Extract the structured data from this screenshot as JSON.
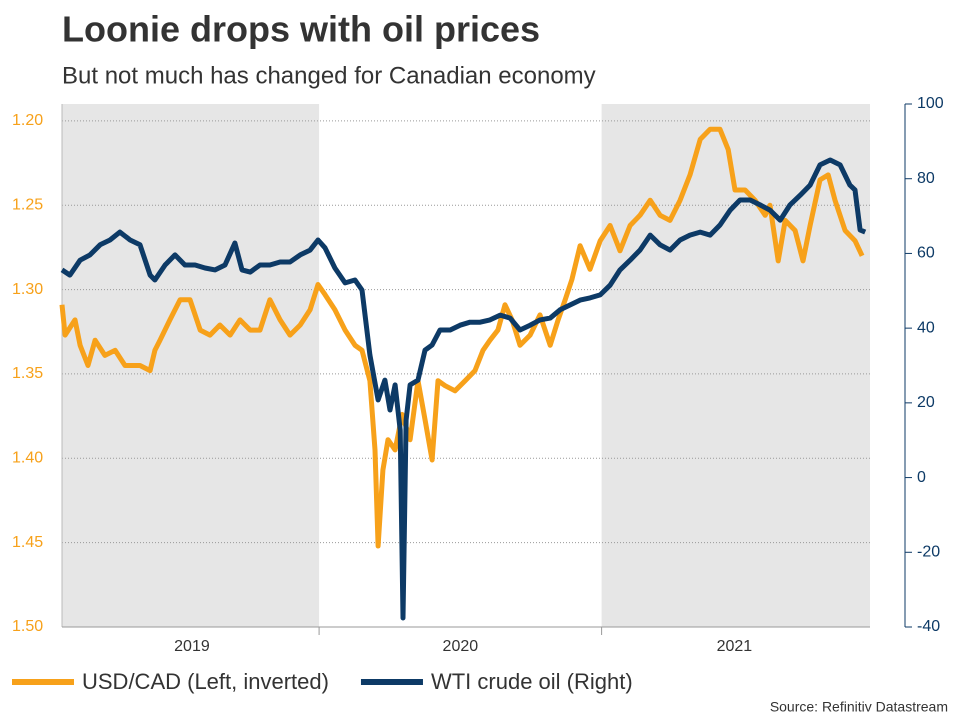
{
  "chart_data": {
    "type": "line",
    "title": "Loonie drops with oil prices",
    "subtitle": "But not much has changed for Canadian economy",
    "source": "Source: Refinitiv Datastream",
    "xlim": [
      2019.09,
      2021.95
    ],
    "xticks": [
      {
        "value": 2019.55,
        "label": "2019"
      },
      {
        "value": 2020.5,
        "label": "2020"
      },
      {
        "value": 2021.47,
        "label": "2021"
      }
    ],
    "ylim": [
      1.19,
      1.5
    ],
    "y_inverted": true,
    "yticks": [
      {
        "value": 1.2,
        "label": "1.20"
      },
      1.25,
      {
        "value": 1.3,
        "label": "1.30"
      },
      1.35,
      {
        "value": 1.4,
        "label": "1.40"
      },
      1.45,
      {
        "value": 1.5,
        "label": "1.50"
      }
    ],
    "y2lim": [
      -40,
      100
    ],
    "y2ticks": [
      100,
      80,
      60,
      40,
      20,
      0,
      -20,
      -40
    ],
    "grid": true,
    "legend": "bottom",
    "series": [
      {
        "name": "USD/CAD (Left, inverted)",
        "color": "#f7a11a",
        "axis": "y",
        "x": [
          2019.09,
          2019.101,
          2019.136,
          2019.154,
          2019.182,
          2019.207,
          2019.242,
          2019.278,
          2019.313,
          2019.366,
          2019.402,
          2019.419,
          2019.437,
          2019.472,
          2019.508,
          2019.543,
          2019.579,
          2019.614,
          2019.649,
          2019.685,
          2019.72,
          2019.756,
          2019.791,
          2019.826,
          2019.862,
          2019.897,
          2019.933,
          2019.968,
          2019.996,
          2020.021,
          2020.056,
          2020.092,
          2020.127,
          2020.152,
          2020.18,
          2020.198,
          2020.209,
          2020.226,
          2020.244,
          2020.269,
          2020.294,
          2020.322,
          2020.35,
          2020.375,
          2020.4,
          2020.421,
          2020.446,
          2020.481,
          2020.517,
          2020.552,
          2020.58,
          2020.605,
          2020.633,
          2020.658,
          2020.683,
          2020.711,
          2020.747,
          2020.782,
          2020.818,
          2020.846,
          2020.871,
          2020.895,
          2020.924,
          2020.959,
          2020.995,
          2021.03,
          2021.065,
          2021.101,
          2021.136,
          2021.172,
          2021.207,
          2021.242,
          2021.278,
          2021.313,
          2021.349,
          2021.384,
          2021.419,
          2021.448,
          2021.472,
          2021.508,
          2021.543,
          2021.579,
          2021.596,
          2021.625,
          2021.65,
          2021.685,
          2021.713,
          2021.738,
          2021.773,
          2021.802,
          2021.826,
          2021.862,
          2021.897,
          2021.922
        ],
        "values": [
          1.309,
          1.327,
          1.318,
          1.333,
          1.345,
          1.33,
          1.339,
          1.336,
          1.345,
          1.345,
          1.348,
          1.336,
          1.33,
          1.318,
          1.306,
          1.306,
          1.324,
          1.327,
          1.321,
          1.327,
          1.318,
          1.324,
          1.324,
          1.306,
          1.318,
          1.327,
          1.321,
          1.312,
          1.297,
          1.303,
          1.312,
          1.324,
          1.333,
          1.336,
          1.354,
          1.395,
          1.452,
          1.407,
          1.389,
          1.395,
          1.374,
          1.389,
          1.354,
          1.377,
          1.401,
          1.354,
          1.357,
          1.36,
          1.354,
          1.348,
          1.336,
          1.33,
          1.324,
          1.309,
          1.318,
          1.333,
          1.327,
          1.315,
          1.333,
          1.318,
          1.306,
          1.294,
          1.274,
          1.288,
          1.271,
          1.262,
          1.277,
          1.262,
          1.256,
          1.247,
          1.256,
          1.259,
          1.247,
          1.232,
          1.211,
          1.205,
          1.205,
          1.217,
          1.241,
          1.241,
          1.247,
          1.256,
          1.25,
          1.283,
          1.259,
          1.265,
          1.283,
          1.262,
          1.235,
          1.232,
          1.247,
          1.265,
          1.271,
          1.28
        ]
      },
      {
        "name": "WTI crude oil (Right)",
        "color": "#0d3a66",
        "axis": "y2",
        "x": [
          2019.09,
          2019.118,
          2019.154,
          2019.189,
          2019.225,
          2019.26,
          2019.295,
          2019.331,
          2019.366,
          2019.402,
          2019.419,
          2019.455,
          2019.49,
          2019.525,
          2019.561,
          2019.596,
          2019.632,
          2019.667,
          2019.702,
          2019.727,
          2019.756,
          2019.791,
          2019.826,
          2019.862,
          2019.897,
          2019.933,
          2019.968,
          2019.996,
          2020.021,
          2020.056,
          2020.092,
          2020.127,
          2020.152,
          2020.18,
          2020.209,
          2020.233,
          2020.251,
          2020.269,
          2020.287,
          2020.297,
          2020.308,
          2020.322,
          2020.35,
          2020.375,
          2020.4,
          2020.428,
          2020.464,
          2020.499,
          2020.534,
          2020.57,
          2020.605,
          2020.641,
          2020.676,
          2020.711,
          2020.747,
          2020.782,
          2020.818,
          2020.853,
          2020.888,
          2020.924,
          2020.959,
          2020.995,
          2021.03,
          2021.065,
          2021.101,
          2021.136,
          2021.172,
          2021.207,
          2021.242,
          2021.278,
          2021.313,
          2021.349,
          2021.384,
          2021.419,
          2021.455,
          2021.49,
          2021.526,
          2021.561,
          2021.596,
          2021.632,
          2021.667,
          2021.703,
          2021.738,
          2021.773,
          2021.809,
          2021.844,
          2021.879,
          2021.897,
          2021.915,
          2021.933
        ],
        "values": [
          55.6,
          54.2,
          58.2,
          59.6,
          62.3,
          63.6,
          65.7,
          63.6,
          62.3,
          54.2,
          52.9,
          56.9,
          59.6,
          56.9,
          56.9,
          56.1,
          55.6,
          56.9,
          62.8,
          55.6,
          55.0,
          56.9,
          56.9,
          57.7,
          57.7,
          59.6,
          60.9,
          63.6,
          61.5,
          56.1,
          52.1,
          52.9,
          50.2,
          32.8,
          20.8,
          26.1,
          18.1,
          24.8,
          12.7,
          -37.6,
          15.4,
          24.8,
          26.1,
          34.1,
          35.5,
          39.5,
          39.5,
          40.8,
          41.6,
          41.6,
          42.2,
          43.5,
          42.7,
          39.5,
          40.8,
          42.2,
          42.7,
          44.9,
          46.2,
          47.5,
          48.1,
          48.9,
          51.5,
          55.6,
          58.2,
          60.9,
          64.9,
          62.3,
          60.9,
          63.6,
          64.9,
          65.7,
          64.9,
          67.6,
          71.6,
          74.3,
          74.3,
          73.0,
          71.6,
          68.9,
          73.0,
          75.6,
          78.3,
          83.7,
          85.0,
          83.7,
          78.3,
          77.0,
          66.3,
          65.7
        ]
      }
    ]
  }
}
